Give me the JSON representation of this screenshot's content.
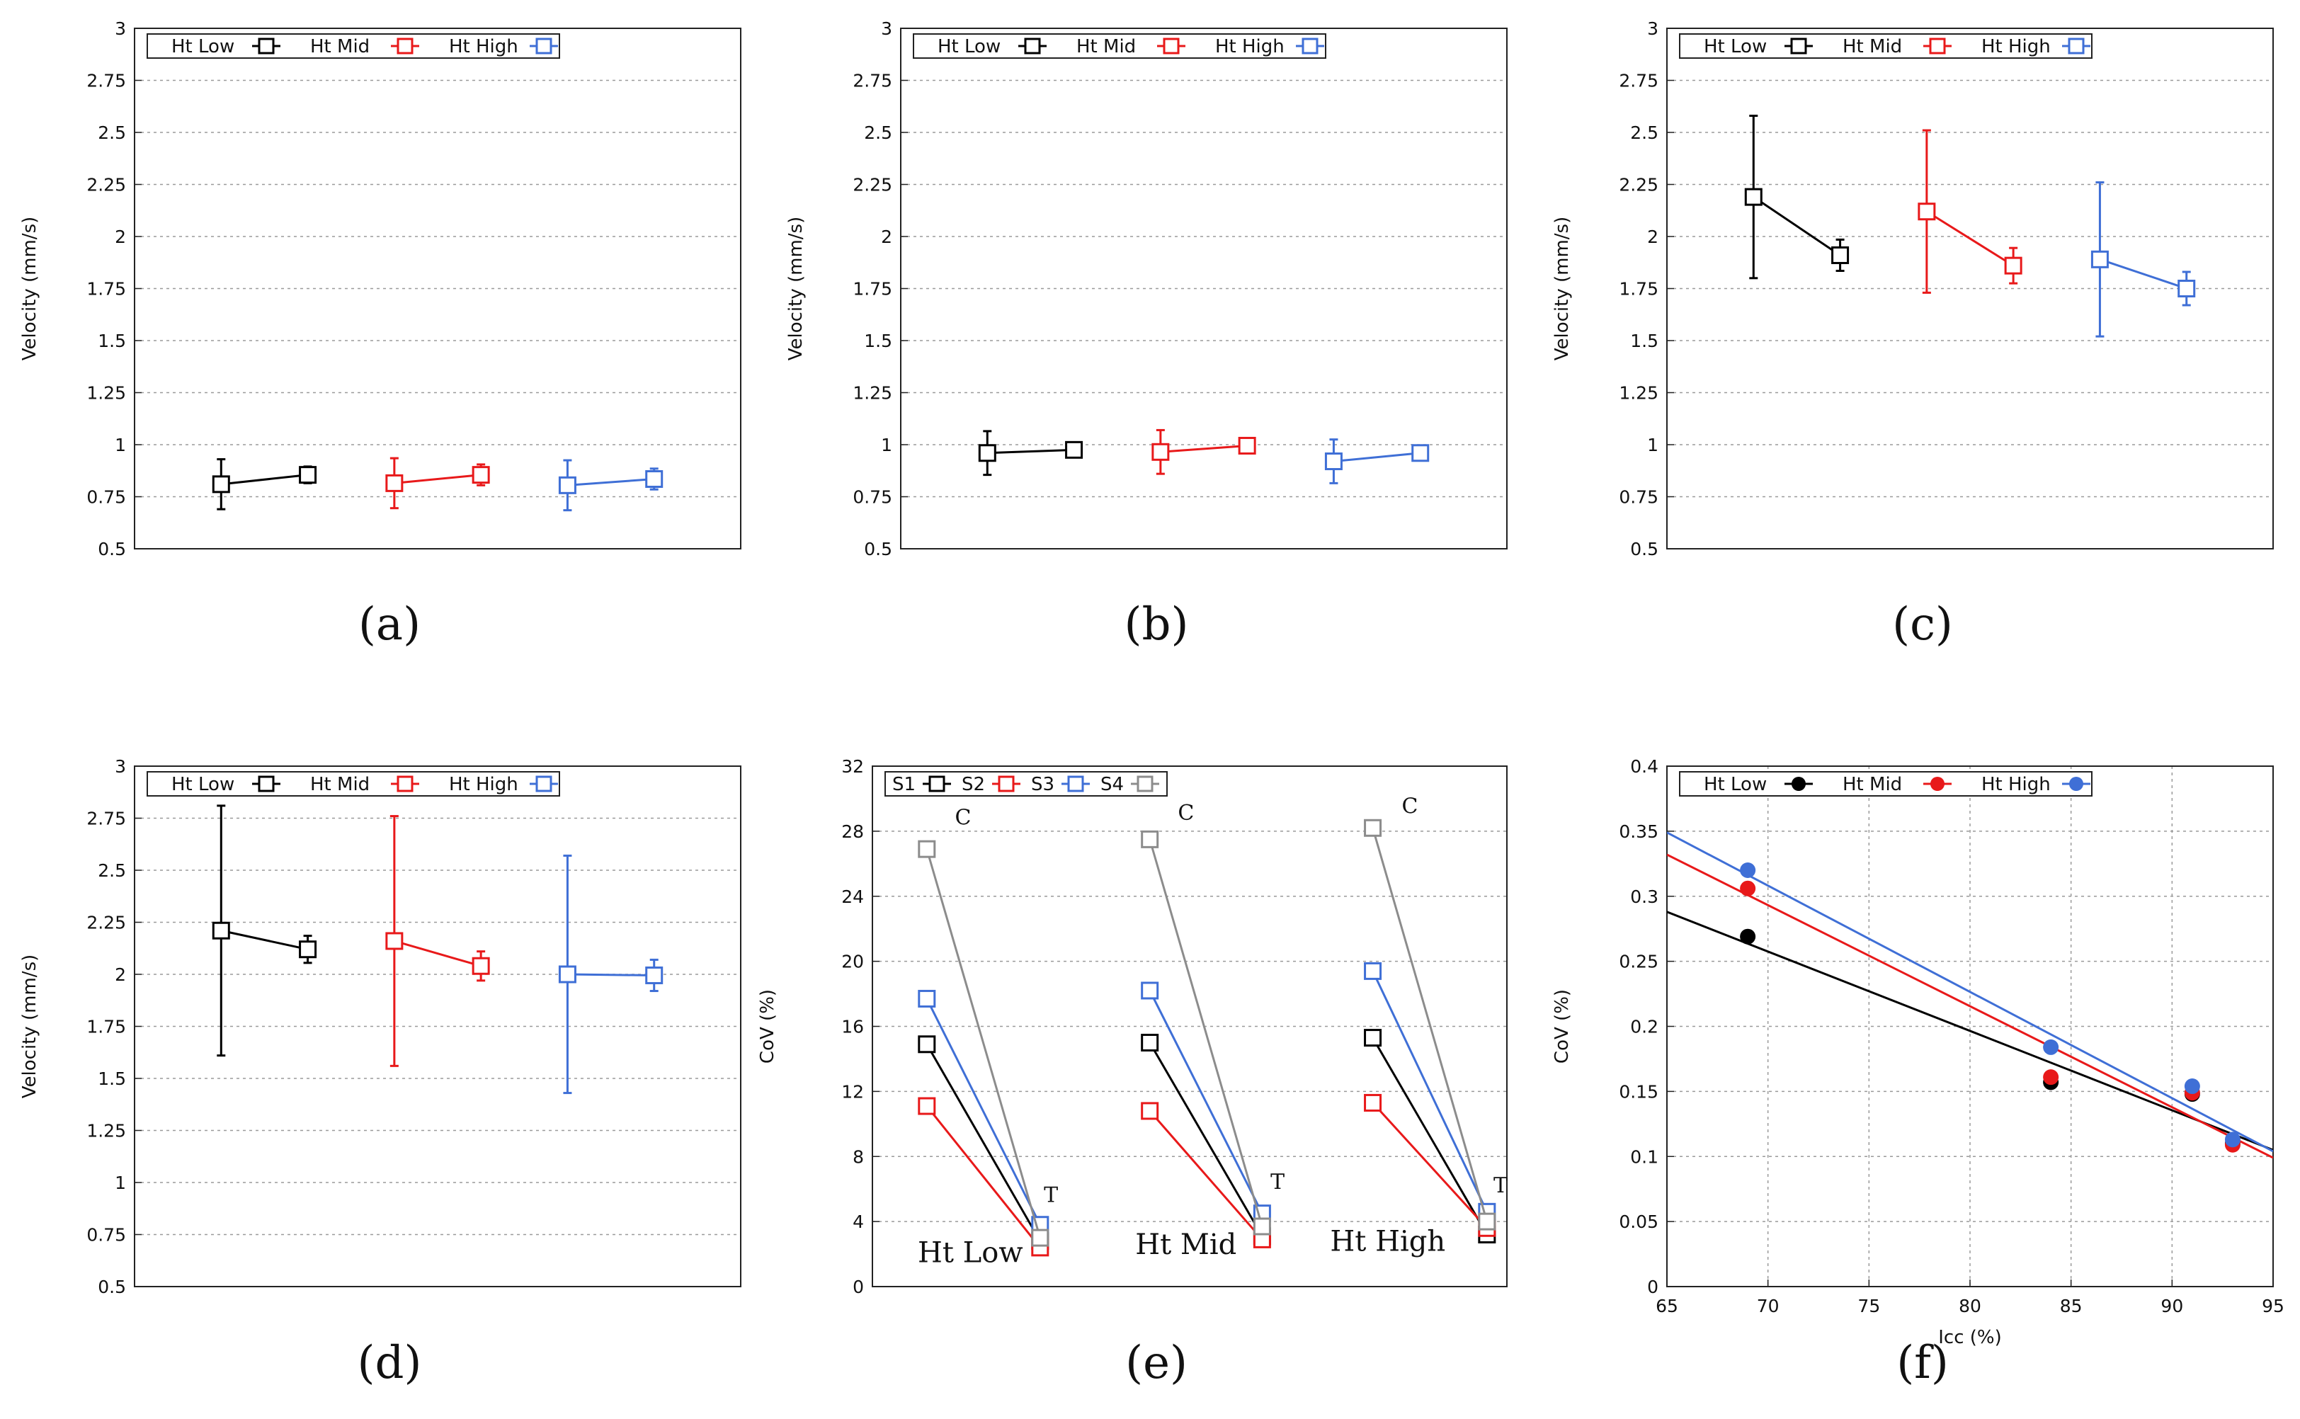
{
  "chart_data": [
    {
      "id": "a",
      "caption": "(a)",
      "type": "line",
      "ylabel": "Velocity (mm/s)",
      "ylim": [
        0.5,
        3
      ],
      "yticks": [
        "0.5",
        "0.75",
        "1",
        "1.25",
        "1.5",
        "1.75",
        "2",
        "2.25",
        "2.5",
        "2.75",
        "3"
      ],
      "x_range": [
        0,
        7
      ],
      "legend": [
        {
          "name": "Ht Low",
          "color": "#000000"
        },
        {
          "name": "Ht Mid",
          "color": "#e8191a"
        },
        {
          "name": "Ht High",
          "color": "#3f6fd6"
        }
      ],
      "series": [
        {
          "name": "Ht Low",
          "color": "#000000",
          "points": [
            {
              "x": 1,
              "y": 0.81,
              "err": 0.12
            },
            {
              "x": 2,
              "y": 0.855,
              "err": 0.04
            }
          ]
        },
        {
          "name": "Ht Mid",
          "color": "#e8191a",
          "points": [
            {
              "x": 3,
              "y": 0.815,
              "err": 0.12
            },
            {
              "x": 4,
              "y": 0.855,
              "err": 0.05
            }
          ]
        },
        {
          "name": "Ht High",
          "color": "#3f6fd6",
          "points": [
            {
              "x": 5,
              "y": 0.805,
              "err": 0.12
            },
            {
              "x": 6,
              "y": 0.835,
              "err": 0.05
            }
          ]
        }
      ]
    },
    {
      "id": "b",
      "caption": "(b)",
      "type": "line",
      "ylabel": "Velocity (mm/s)",
      "ylim": [
        0.5,
        3
      ],
      "yticks": [
        "0.5",
        "0.75",
        "1",
        "1.25",
        "1.5",
        "1.75",
        "2",
        "2.25",
        "2.5",
        "2.75",
        "3"
      ],
      "x_range": [
        0,
        7
      ],
      "legend": [
        {
          "name": "Ht Low",
          "color": "#000000"
        },
        {
          "name": "Ht Mid",
          "color": "#e8191a"
        },
        {
          "name": "Ht High",
          "color": "#3f6fd6"
        }
      ],
      "series": [
        {
          "name": "Ht Low",
          "color": "#000000",
          "points": [
            {
              "x": 1,
              "y": 0.96,
              "err": 0.105
            },
            {
              "x": 2,
              "y": 0.975,
              "err": 0.03
            }
          ]
        },
        {
          "name": "Ht Mid",
          "color": "#e8191a",
          "points": [
            {
              "x": 3,
              "y": 0.965,
              "err": 0.105
            },
            {
              "x": 4,
              "y": 0.995,
              "err": 0.03
            }
          ]
        },
        {
          "name": "Ht High",
          "color": "#3f6fd6",
          "points": [
            {
              "x": 5,
              "y": 0.92,
              "err": 0.105
            },
            {
              "x": 6,
              "y": 0.96,
              "err": 0.03
            }
          ]
        }
      ]
    },
    {
      "id": "c",
      "caption": "(c)",
      "type": "line",
      "ylabel": "Velocity (mm/s)",
      "ylim": [
        0.5,
        3
      ],
      "yticks": [
        "0.5",
        "0.75",
        "1",
        "1.25",
        "1.5",
        "1.75",
        "2",
        "2.25",
        "2.5",
        "2.75",
        "3"
      ],
      "x_range": [
        0,
        7
      ],
      "legend": [
        {
          "name": "Ht Low",
          "color": "#000000"
        },
        {
          "name": "Ht Mid",
          "color": "#e8191a"
        },
        {
          "name": "Ht High",
          "color": "#3f6fd6"
        }
      ],
      "series": [
        {
          "name": "Ht Low",
          "color": "#000000",
          "points": [
            {
              "x": 1,
              "y": 2.19,
              "err": 0.39
            },
            {
              "x": 2,
              "y": 1.91,
              "err": 0.075
            }
          ]
        },
        {
          "name": "Ht Mid",
          "color": "#e8191a",
          "points": [
            {
              "x": 3,
              "y": 2.12,
              "err": 0.39
            },
            {
              "x": 4,
              "y": 1.86,
              "err": 0.085
            }
          ]
        },
        {
          "name": "Ht High",
          "color": "#3f6fd6",
          "points": [
            {
              "x": 5,
              "y": 1.89,
              "err": 0.37
            },
            {
              "x": 6,
              "y": 1.75,
              "err": 0.08
            }
          ]
        }
      ]
    },
    {
      "id": "d",
      "caption": "(d)",
      "type": "line",
      "ylabel": "Velocity (mm/s)",
      "ylim": [
        0.5,
        3
      ],
      "yticks": [
        "0.5",
        "0.75",
        "1",
        "1.25",
        "1.5",
        "1.75",
        "2",
        "2.25",
        "2.5",
        "2.75",
        "3"
      ],
      "x_range": [
        0,
        7
      ],
      "legend": [
        {
          "name": "Ht Low",
          "color": "#000000"
        },
        {
          "name": "Ht Mid",
          "color": "#e8191a"
        },
        {
          "name": "Ht High",
          "color": "#3f6fd6"
        }
      ],
      "series": [
        {
          "name": "Ht Low",
          "color": "#000000",
          "points": [
            {
              "x": 1,
              "y": 2.21,
              "err": 0.6
            },
            {
              "x": 2,
              "y": 2.12,
              "err": 0.065
            }
          ]
        },
        {
          "name": "Ht Mid",
          "color": "#e8191a",
          "points": [
            {
              "x": 3,
              "y": 2.16,
              "err": 0.6
            },
            {
              "x": 4,
              "y": 2.04,
              "err": 0.07
            }
          ]
        },
        {
          "name": "Ht High",
          "color": "#3f6fd6",
          "points": [
            {
              "x": 5,
              "y": 2.0,
              "err": 0.57
            },
            {
              "x": 6,
              "y": 1.995,
              "err": 0.075
            }
          ]
        }
      ]
    },
    {
      "id": "e",
      "caption": "(e)",
      "type": "line",
      "ylabel": "CoV (%)",
      "ylim": [
        0,
        32
      ],
      "yticks": [
        "0",
        "4",
        "8",
        "12",
        "16",
        "20",
        "24",
        "28",
        "32"
      ],
      "x_range": [
        0,
        7
      ],
      "legend": [
        {
          "name": "S1",
          "color": "#000000"
        },
        {
          "name": "S2",
          "color": "#e8191a"
        },
        {
          "name": "S3",
          "color": "#3f6fd6"
        },
        {
          "name": "S4",
          "color": "#8c8c8c"
        }
      ],
      "group_labels": [
        {
          "text": "Ht Low",
          "x": 0.5,
          "y": 1.5
        },
        {
          "text": "Ht Mid",
          "x": 2.9,
          "y": 2.0
        },
        {
          "text": "Ht High",
          "x": 5.05,
          "y": 2.2
        }
      ],
      "annotations": [
        {
          "text": "C",
          "x": 1.0,
          "y": 28.4
        },
        {
          "text": "T",
          "x": 1.97,
          "y": 5.2
        },
        {
          "text": "C",
          "x": 3.46,
          "y": 28.7
        },
        {
          "text": "T",
          "x": 4.47,
          "y": 6.0
        },
        {
          "text": "C",
          "x": 5.93,
          "y": 29.1
        },
        {
          "text": "T",
          "x": 6.93,
          "y": 5.8
        }
      ],
      "series": [
        {
          "name": "S1",
          "color": "#000000",
          "segments": [
            [
              {
                "x": 0.6,
                "y": 14.9
              },
              {
                "x": 1.85,
                "y": 2.8
              }
            ],
            [
              {
                "x": 3.06,
                "y": 15.0
              },
              {
                "x": 4.3,
                "y": 3.1
              }
            ],
            [
              {
                "x": 5.52,
                "y": 15.3
              },
              {
                "x": 6.78,
                "y": 3.2
              }
            ]
          ]
        },
        {
          "name": "S2",
          "color": "#e8191a",
          "segments": [
            [
              {
                "x": 0.6,
                "y": 11.1
              },
              {
                "x": 1.85,
                "y": 2.4
              }
            ],
            [
              {
                "x": 3.06,
                "y": 10.8
              },
              {
                "x": 4.3,
                "y": 2.9
              }
            ],
            [
              {
                "x": 5.52,
                "y": 11.3
              },
              {
                "x": 6.78,
                "y": 3.6
              }
            ]
          ]
        },
        {
          "name": "S3",
          "color": "#3f6fd6",
          "segments": [
            [
              {
                "x": 0.6,
                "y": 17.7
              },
              {
                "x": 1.85,
                "y": 3.8
              }
            ],
            [
              {
                "x": 3.06,
                "y": 18.2
              },
              {
                "x": 4.3,
                "y": 4.5
              }
            ],
            [
              {
                "x": 5.52,
                "y": 19.4
              },
              {
                "x": 6.78,
                "y": 4.6
              }
            ]
          ]
        },
        {
          "name": "S4",
          "color": "#8c8c8c",
          "segments": [
            [
              {
                "x": 0.6,
                "y": 26.9
              },
              {
                "x": 1.85,
                "y": 3.0
              }
            ],
            [
              {
                "x": 3.06,
                "y": 27.5
              },
              {
                "x": 4.3,
                "y": 3.7
              }
            ],
            [
              {
                "x": 5.52,
                "y": 28.2
              },
              {
                "x": 6.78,
                "y": 4.0
              }
            ]
          ]
        }
      ]
    },
    {
      "id": "f",
      "caption": "(f)",
      "type": "scatter",
      "xlabel": "Icc (%)",
      "ylabel": "CoV (%)",
      "xlim": [
        65,
        95
      ],
      "ylim": [
        0,
        0.4
      ],
      "xticks": [
        "65",
        "70",
        "75",
        "80",
        "85",
        "90",
        "95"
      ],
      "yticks": [
        "0",
        "0.05",
        "0.1",
        "0.15",
        "0.2",
        "0.25",
        "0.3",
        "0.35",
        "0.4"
      ],
      "legend": [
        {
          "name": "Ht Low",
          "color": "#000000"
        },
        {
          "name": "Ht Mid",
          "color": "#e8191a"
        },
        {
          "name": "Ht High",
          "color": "#3f6fd6"
        }
      ],
      "series": [
        {
          "name": "Ht Low",
          "color": "#000000",
          "points": [
            {
              "x": 69,
              "y": 0.269
            },
            {
              "x": 84,
              "y": 0.157
            },
            {
              "x": 91,
              "y": 0.148
            },
            {
              "x": 93,
              "y": 0.11
            }
          ],
          "fit": [
            {
              "x": 65,
              "y": 0.288
            },
            {
              "x": 95,
              "y": 0.105
            }
          ]
        },
        {
          "name": "Ht Mid",
          "color": "#e8191a",
          "points": [
            {
              "x": 69,
              "y": 0.306
            },
            {
              "x": 84,
              "y": 0.161
            },
            {
              "x": 91,
              "y": 0.149
            },
            {
              "x": 93,
              "y": 0.109
            }
          ],
          "fit": [
            {
              "x": 65,
              "y": 0.332
            },
            {
              "x": 95,
              "y": 0.099
            }
          ]
        },
        {
          "name": "Ht High",
          "color": "#3f6fd6",
          "points": [
            {
              "x": 69,
              "y": 0.32
            },
            {
              "x": 84,
              "y": 0.184
            },
            {
              "x": 91,
              "y": 0.154
            },
            {
              "x": 93,
              "y": 0.113
            }
          ],
          "fit": [
            {
              "x": 65,
              "y": 0.349
            },
            {
              "x": 95,
              "y": 0.104
            }
          ]
        }
      ]
    }
  ]
}
